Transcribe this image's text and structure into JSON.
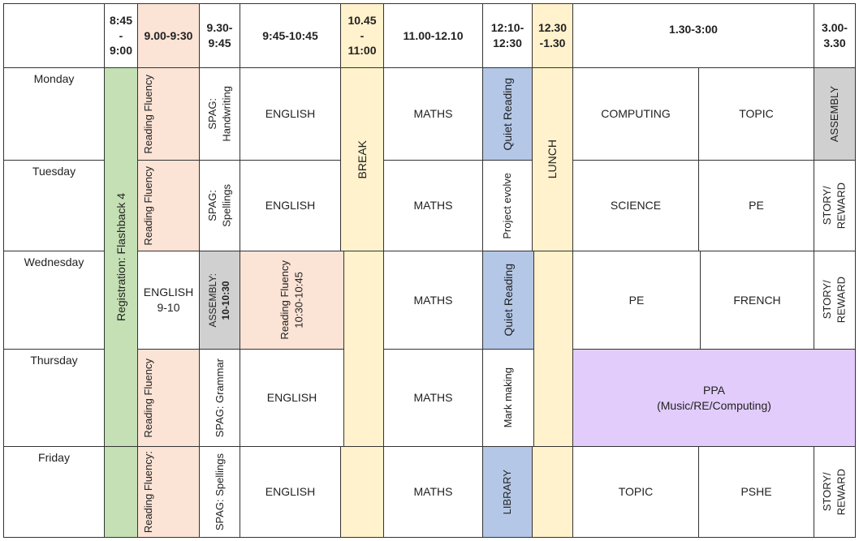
{
  "times": {
    "t1": "8:45\n-\n9:00",
    "t2": "9.00-9:30",
    "t3": "9.30-\n9:45",
    "t4": "9:45-10:45",
    "t5": "10.45\n-\n11:00",
    "t6": "11.00-12.10",
    "t7": "12:10-\n12:30",
    "t8": "12.30\n-1.30",
    "t9": "1.30-3:00",
    "t10": "3.00-\n3.30"
  },
  "days": [
    "Monday",
    "Tuesday",
    "Wednesday",
    "Thursday",
    "Friday"
  ],
  "registration": "Registration: Flashback 4",
  "break": "BREAK",
  "lunch": "LUNCH",
  "monday": {
    "reading": "Reading Fluency",
    "spag": "SPAG:\nHandwriting",
    "english": "ENGLISH",
    "maths": "MATHS",
    "quiet": "Quiet Reading",
    "pm1": "COMPUTING",
    "pm2": "TOPIC",
    "end": "ASSEMBLY"
  },
  "tuesday": {
    "reading": "Reading Fluency",
    "spag": "SPAG:\nSpellings",
    "english": "ENGLISH",
    "maths": "MATHS",
    "project": "Project evolve",
    "pm1": "SCIENCE",
    "pm2": "PE",
    "end": "STORY/\nREWARD"
  },
  "wednesday": {
    "english": "ENGLISH\n9-10",
    "assembly_label": "ASSEMBLY:",
    "assembly_time": "10-10:30",
    "reading": "Reading Fluency\n10:30-10:45",
    "maths": "MATHS",
    "quiet": "Quiet Reading",
    "pm1": "PE",
    "pm2": "FRENCH",
    "end": "STORY/\nREWARD"
  },
  "thursday": {
    "reading": "Reading Fluency",
    "spag": "SPAG: Grammar",
    "english": "ENGLISH",
    "maths": "MATHS",
    "mark": "Mark making",
    "ppa": "PPA",
    "ppa_sub": "(Music/RE/Computing)"
  },
  "friday": {
    "reading": "Reading Fluency:",
    "spag": "SPAG: Spellings",
    "english": "ENGLISH",
    "maths": "MATHS",
    "library": "LIBRARY",
    "pm1": "TOPIC",
    "pm2": "PSHE",
    "end": "STORY/\nREWARD"
  },
  "colors": {
    "reading": "#FBE3D6",
    "break_lunch": "#FFF2CC",
    "registration": "#C5E0B4",
    "quiet_reading": "#B4C7E7",
    "assembly": "#D0D0D0",
    "ppa": "#E2CCFB"
  }
}
